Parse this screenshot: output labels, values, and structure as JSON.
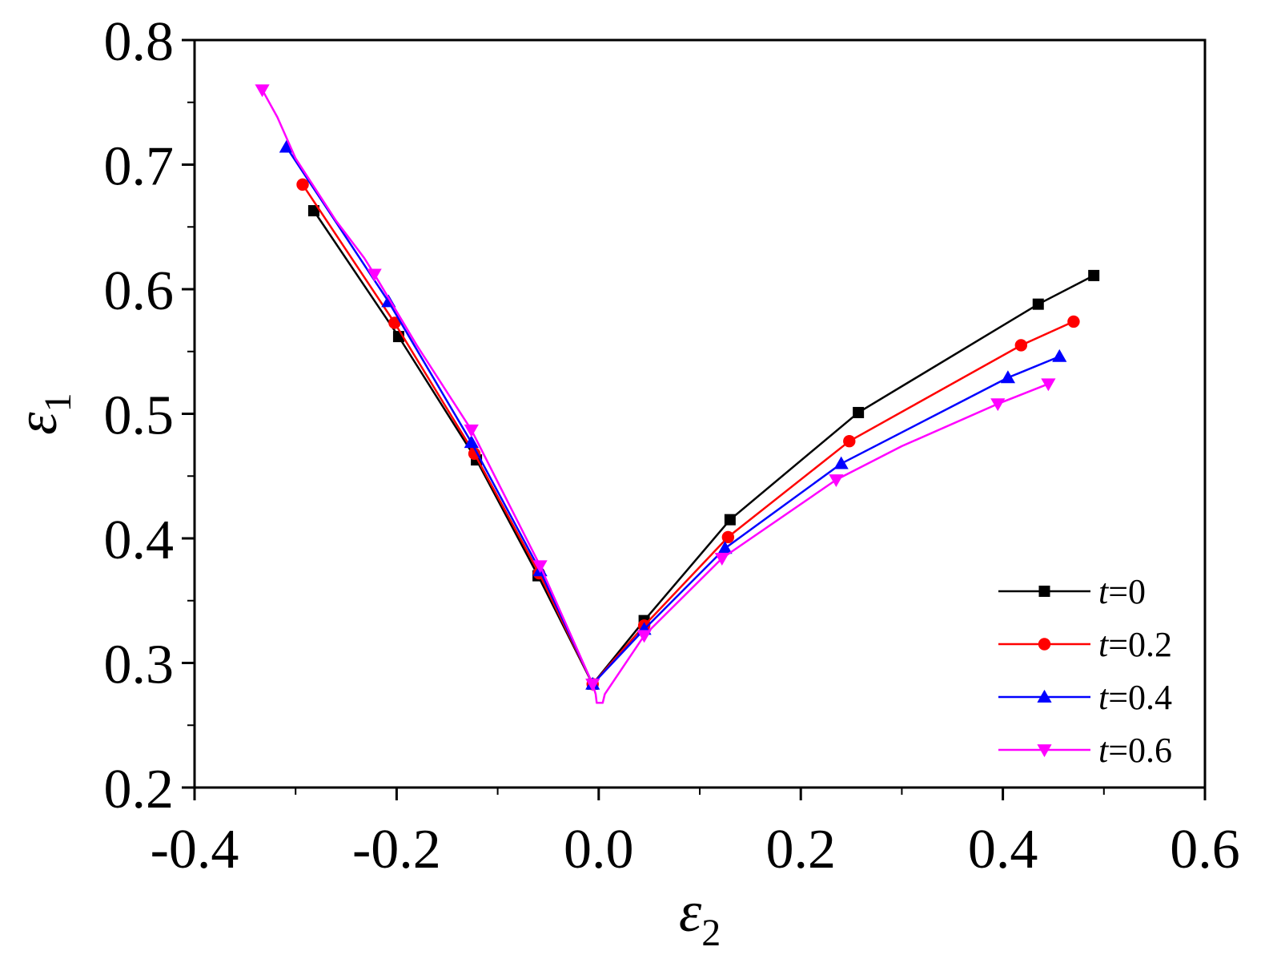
{
  "chart_data": {
    "type": "line",
    "xlabel": "ε",
    "xlabel_sub": "2",
    "ylabel": "ε",
    "ylabel_sub": "1",
    "xlim": [
      -0.4,
      0.6
    ],
    "ylim": [
      0.2,
      0.8
    ],
    "xticks": [
      -0.4,
      -0.2,
      0.0,
      0.2,
      0.4,
      0.6
    ],
    "xtick_labels": [
      "-0.4",
      "-0.2",
      "0.0",
      "0.2",
      "0.4",
      "0.6"
    ],
    "yticks": [
      0.2,
      0.3,
      0.4,
      0.5,
      0.6,
      0.7,
      0.8
    ],
    "ytick_labels": [
      "0.2",
      "0.3",
      "0.4",
      "0.5",
      "0.6",
      "0.7",
      "0.8"
    ],
    "grid": false,
    "legend_position": "bottom-right",
    "series": [
      {
        "name": "t=0",
        "name_var": "t",
        "name_val": "=0",
        "color": "#000000",
        "marker": "square",
        "points": [
          [
            -0.282,
            0.663
          ],
          [
            -0.198,
            0.562
          ],
          [
            -0.121,
            0.463
          ],
          [
            -0.06,
            0.37
          ],
          [
            -0.006,
            0.283
          ],
          [
            0.045,
            0.334
          ],
          [
            0.13,
            0.415
          ],
          [
            0.257,
            0.501
          ],
          [
            0.435,
            0.588
          ],
          [
            0.49,
            0.611
          ]
        ],
        "markers": [
          [
            -0.282,
            0.663
          ],
          [
            -0.198,
            0.562
          ],
          [
            -0.121,
            0.463
          ],
          [
            -0.06,
            0.37
          ],
          [
            -0.006,
            0.283
          ],
          [
            0.045,
            0.334
          ],
          [
            0.13,
            0.415
          ],
          [
            0.257,
            0.501
          ],
          [
            0.435,
            0.588
          ],
          [
            0.49,
            0.611
          ]
        ]
      },
      {
        "name": "t=0.2",
        "name_var": "t",
        "name_val": "=0.2",
        "color": "#ff0000",
        "marker": "circle",
        "points": [
          [
            -0.293,
            0.684
          ],
          [
            -0.202,
            0.573
          ],
          [
            -0.123,
            0.468
          ],
          [
            -0.059,
            0.372
          ],
          [
            -0.006,
            0.283
          ],
          [
            0.045,
            0.33
          ],
          [
            0.128,
            0.401
          ],
          [
            0.248,
            0.478
          ],
          [
            0.418,
            0.555
          ],
          [
            0.47,
            0.574
          ]
        ],
        "markers": [
          [
            -0.293,
            0.684
          ],
          [
            -0.202,
            0.573
          ],
          [
            -0.123,
            0.468
          ],
          [
            -0.059,
            0.372
          ],
          [
            -0.006,
            0.283
          ],
          [
            0.045,
            0.33
          ],
          [
            0.128,
            0.401
          ],
          [
            0.248,
            0.478
          ],
          [
            0.418,
            0.555
          ],
          [
            0.47,
            0.574
          ]
        ]
      },
      {
        "name": "t=0.4",
        "name_var": "t",
        "name_val": "=0.4",
        "color": "#0000ff",
        "marker": "triangle-up",
        "points": [
          [
            -0.309,
            0.714
          ],
          [
            -0.208,
            0.59
          ],
          [
            -0.126,
            0.477
          ],
          [
            -0.058,
            0.374
          ],
          [
            -0.006,
            0.283
          ],
          [
            0.045,
            0.327
          ],
          [
            0.125,
            0.392
          ],
          [
            0.24,
            0.46
          ],
          [
            0.405,
            0.529
          ],
          [
            0.456,
            0.546
          ]
        ],
        "markers": [
          [
            -0.309,
            0.714
          ],
          [
            -0.208,
            0.59
          ],
          [
            -0.126,
            0.477
          ],
          [
            -0.058,
            0.374
          ],
          [
            -0.006,
            0.283
          ],
          [
            0.045,
            0.327
          ],
          [
            0.125,
            0.392
          ],
          [
            0.24,
            0.46
          ],
          [
            0.405,
            0.529
          ],
          [
            0.456,
            0.546
          ]
        ]
      },
      {
        "name": "t=0.6",
        "name_var": "t",
        "name_val": "=0.6",
        "color": "#ff00ff",
        "marker": "triangle-down",
        "points": [
          [
            -0.333,
            0.76
          ],
          [
            -0.318,
            0.738
          ],
          [
            -0.3,
            0.705
          ],
          [
            -0.26,
            0.655
          ],
          [
            -0.232,
            0.625
          ],
          [
            -0.222,
            0.612
          ],
          [
            -0.18,
            0.555
          ],
          [
            -0.126,
            0.487
          ],
          [
            -0.058,
            0.378
          ],
          [
            -0.006,
            0.283
          ],
          [
            -0.003,
            0.275
          ],
          [
            -0.002,
            0.268
          ],
          [
            0.004,
            0.268
          ],
          [
            0.006,
            0.275
          ],
          [
            0.045,
            0.322
          ],
          [
            0.122,
            0.384
          ],
          [
            0.235,
            0.447
          ],
          [
            0.3,
            0.474
          ],
          [
            0.395,
            0.508
          ],
          [
            0.445,
            0.524
          ]
        ],
        "markers": [
          [
            -0.333,
            0.76
          ],
          [
            -0.222,
            0.612
          ],
          [
            -0.126,
            0.487
          ],
          [
            -0.058,
            0.378
          ],
          [
            -0.006,
            0.283
          ],
          [
            0.045,
            0.322
          ],
          [
            0.122,
            0.384
          ],
          [
            0.235,
            0.447
          ],
          [
            0.395,
            0.508
          ],
          [
            0.445,
            0.524
          ]
        ]
      }
    ]
  }
}
